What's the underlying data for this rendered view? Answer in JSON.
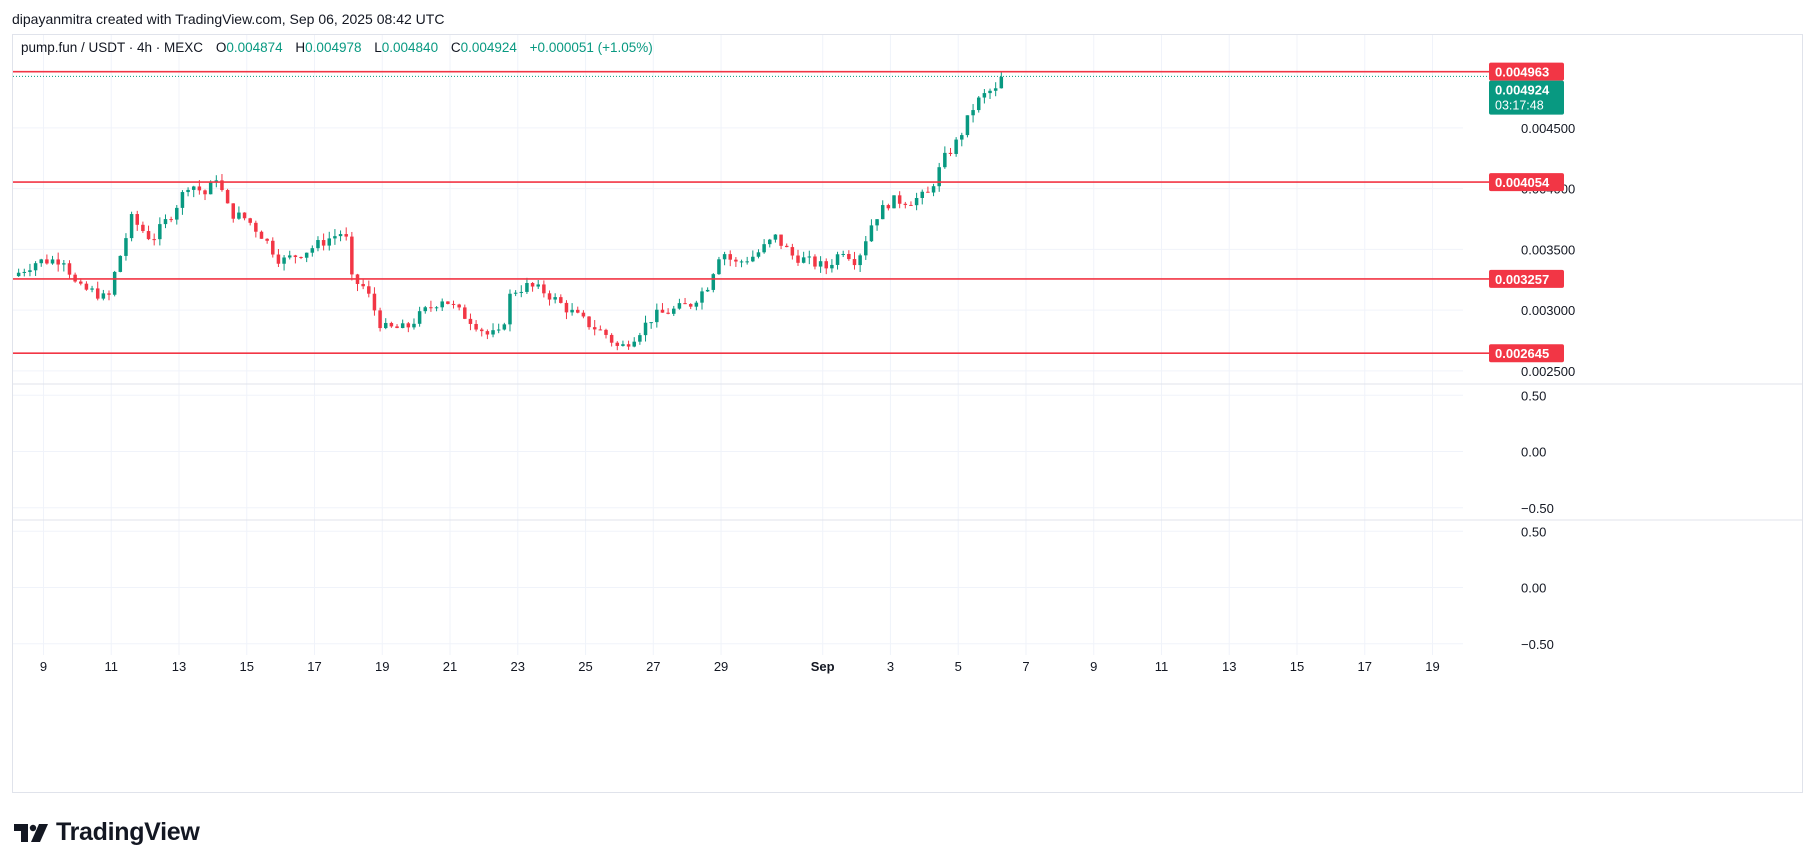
{
  "header": {
    "attribution": "dipayanmitra created with TradingView.com, Sep 06, 2025 08:42 UTC"
  },
  "legend": {
    "symbol": "pump.fun / USDT · 4h · MEXC",
    "open_label": "O",
    "open": "0.004874",
    "high_label": "H",
    "high": "0.004978",
    "low_label": "L",
    "low": "0.004840",
    "close_label": "C",
    "close": "0.004924",
    "change": "+0.000051 (+1.05%)"
  },
  "footer": {
    "brand": "TradingView"
  },
  "colors": {
    "up": "#089981",
    "down": "#f23645",
    "level": "#f23645",
    "grid": "#f0f3fa",
    "text": "#131722"
  },
  "chart_data": {
    "type": "candlestick",
    "title": "pump.fun / USDT · 4h · MEXC",
    "x_ticks": [
      "9",
      "11",
      "13",
      "15",
      "17",
      "19",
      "21",
      "23",
      "25",
      "27",
      "29",
      "Sep",
      "3",
      "5",
      "7",
      "9",
      "11",
      "13",
      "15",
      "17",
      "19"
    ],
    "x_tick_days": [
      9,
      11,
      13,
      15,
      17,
      19,
      21,
      23,
      25,
      27,
      29,
      32,
      34,
      36,
      38,
      40,
      42,
      44,
      46,
      48,
      50
    ],
    "xlim_days": [
      8.1,
      50.9
    ],
    "price_axis": {
      "ticks": [
        "0.004500",
        "0.004000",
        "0.003500",
        "0.003000",
        "0.002500"
      ],
      "tick_values": [
        0.0045,
        0.004,
        0.0035,
        0.003,
        0.0025
      ],
      "ylim": [
        0.0024,
        0.0051
      ]
    },
    "horizontal_levels": [
      {
        "label": "0.004963",
        "value": 0.004963
      },
      {
        "label": "0.004054",
        "value": 0.004054
      },
      {
        "label": "0.003257",
        "value": 0.003257
      },
      {
        "label": "0.002645",
        "value": 0.002645
      }
    ],
    "last_price": {
      "label": "0.004924",
      "value": 0.004924,
      "countdown": "03:17:48"
    },
    "indicator_panes": [
      {
        "ticks": [
          "0.50",
          "0.00",
          "−0.50"
        ],
        "ylim": [
          -0.6,
          0.6
        ]
      },
      {
        "ticks": [
          "0.50",
          "0.00",
          "−0.50"
        ],
        "ylim": [
          -0.6,
          0.6
        ]
      }
    ],
    "close_path": [
      [
        8.1,
        0.00328
      ],
      [
        8.8,
        0.0034
      ],
      [
        9.6,
        0.00342
      ],
      [
        10.0,
        0.00318
      ],
      [
        10.5,
        0.00315
      ],
      [
        10.9,
        0.00308
      ],
      [
        11.1,
        0.0033
      ],
      [
        11.6,
        0.00375
      ],
      [
        12.2,
        0.00358
      ],
      [
        12.8,
        0.0038
      ],
      [
        13.3,
        0.00405
      ],
      [
        13.8,
        0.00395
      ],
      [
        14.1,
        0.0041
      ],
      [
        14.5,
        0.0038
      ],
      [
        15.0,
        0.00375
      ],
      [
        15.5,
        0.0036
      ],
      [
        16.0,
        0.0034
      ],
      [
        16.7,
        0.00348
      ],
      [
        17.5,
        0.0036
      ],
      [
        17.9,
        0.00365
      ],
      [
        18.1,
        0.00325
      ],
      [
        18.5,
        0.00318
      ],
      [
        19.0,
        0.00285
      ],
      [
        19.7,
        0.00285
      ],
      [
        20.2,
        0.00298
      ],
      [
        20.8,
        0.0031
      ],
      [
        21.2,
        0.003
      ],
      [
        21.7,
        0.0029
      ],
      [
        22.1,
        0.0028
      ],
      [
        22.5,
        0.0028
      ],
      [
        22.8,
        0.00315
      ],
      [
        23.3,
        0.0032
      ],
      [
        23.8,
        0.00315
      ],
      [
        24.5,
        0.003
      ],
      [
        25.0,
        0.0029
      ],
      [
        25.6,
        0.0028
      ],
      [
        26.0,
        0.00268
      ],
      [
        26.5,
        0.0028
      ],
      [
        27.0,
        0.00295
      ],
      [
        27.6,
        0.003
      ],
      [
        28.1,
        0.00305
      ],
      [
        28.6,
        0.0032
      ],
      [
        29.0,
        0.0035
      ],
      [
        29.4,
        0.00338
      ],
      [
        30.0,
        0.00345
      ],
      [
        30.6,
        0.0036
      ],
      [
        31.1,
        0.00345
      ],
      [
        31.6,
        0.0034
      ],
      [
        32.1,
        0.00335
      ],
      [
        32.6,
        0.0035
      ],
      [
        33.0,
        0.0034
      ],
      [
        33.5,
        0.00375
      ],
      [
        34.0,
        0.0039
      ],
      [
        34.6,
        0.0039
      ],
      [
        35.1,
        0.00395
      ],
      [
        35.6,
        0.00425
      ],
      [
        36.0,
        0.0044
      ],
      [
        36.5,
        0.0047
      ],
      [
        36.9,
        0.0048
      ],
      [
        37.1,
        0.0048
      ],
      [
        37.3,
        0.00492
      ]
    ],
    "candle_stride_days": 0.1667
  }
}
